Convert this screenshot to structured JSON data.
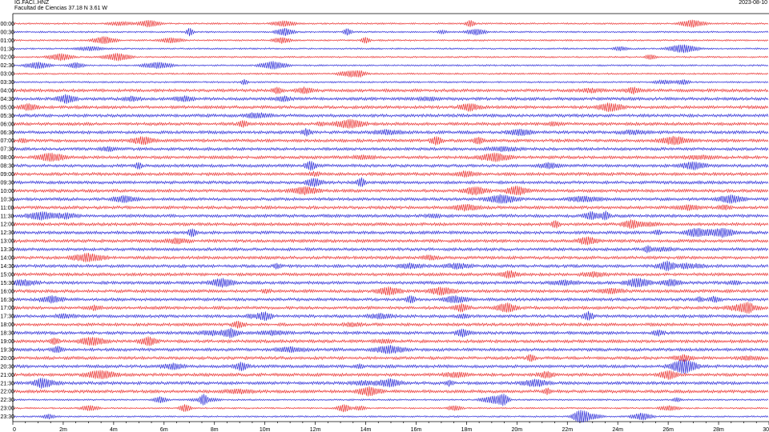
{
  "header": {
    "station": "IG.FACI..HNZ",
    "location": "Facultad de Ciencias  37.18 N 3.61 W",
    "date": "2023-08-10"
  },
  "chart_data": {
    "type": "line",
    "title": "",
    "row_labels": [
      "00:00",
      "00:30",
      "01:00",
      "01:30",
      "02:00",
      "02:30",
      "03:00",
      "03:30",
      "04:00",
      "04:30",
      "05:00",
      "05:30",
      "06:00",
      "06:30",
      "07:00",
      "07:30",
      "08:00",
      "08:30",
      "09:00",
      "09:30",
      "10:00",
      "10:30",
      "11:00",
      "11:30",
      "12:00",
      "12:30",
      "13:00",
      "13:30",
      "14:00",
      "14:30",
      "15:00",
      "15:30",
      "16:00",
      "16:30",
      "17:00",
      "17:30",
      "18:00",
      "18:30",
      "19:00",
      "19:30",
      "20:00",
      "20:30",
      "21:00",
      "21:30",
      "22:00",
      "22:30",
      "23:00",
      "23:30"
    ],
    "row_colors": [
      "#e8201e",
      "#1a1ad4"
    ],
    "x_ticks": [
      0,
      2,
      4,
      6,
      8,
      10,
      12,
      14,
      16,
      18,
      20,
      22,
      24,
      26,
      28,
      30
    ],
    "x_tick_labels": [
      "0",
      "2m",
      "4m",
      "6m",
      "8m",
      "10m",
      "12m",
      "14m",
      "16m",
      "18m",
      "20m",
      "22m",
      "24m",
      "26m",
      "28m",
      "30"
    ],
    "xlim": [
      0,
      30
    ]
  }
}
